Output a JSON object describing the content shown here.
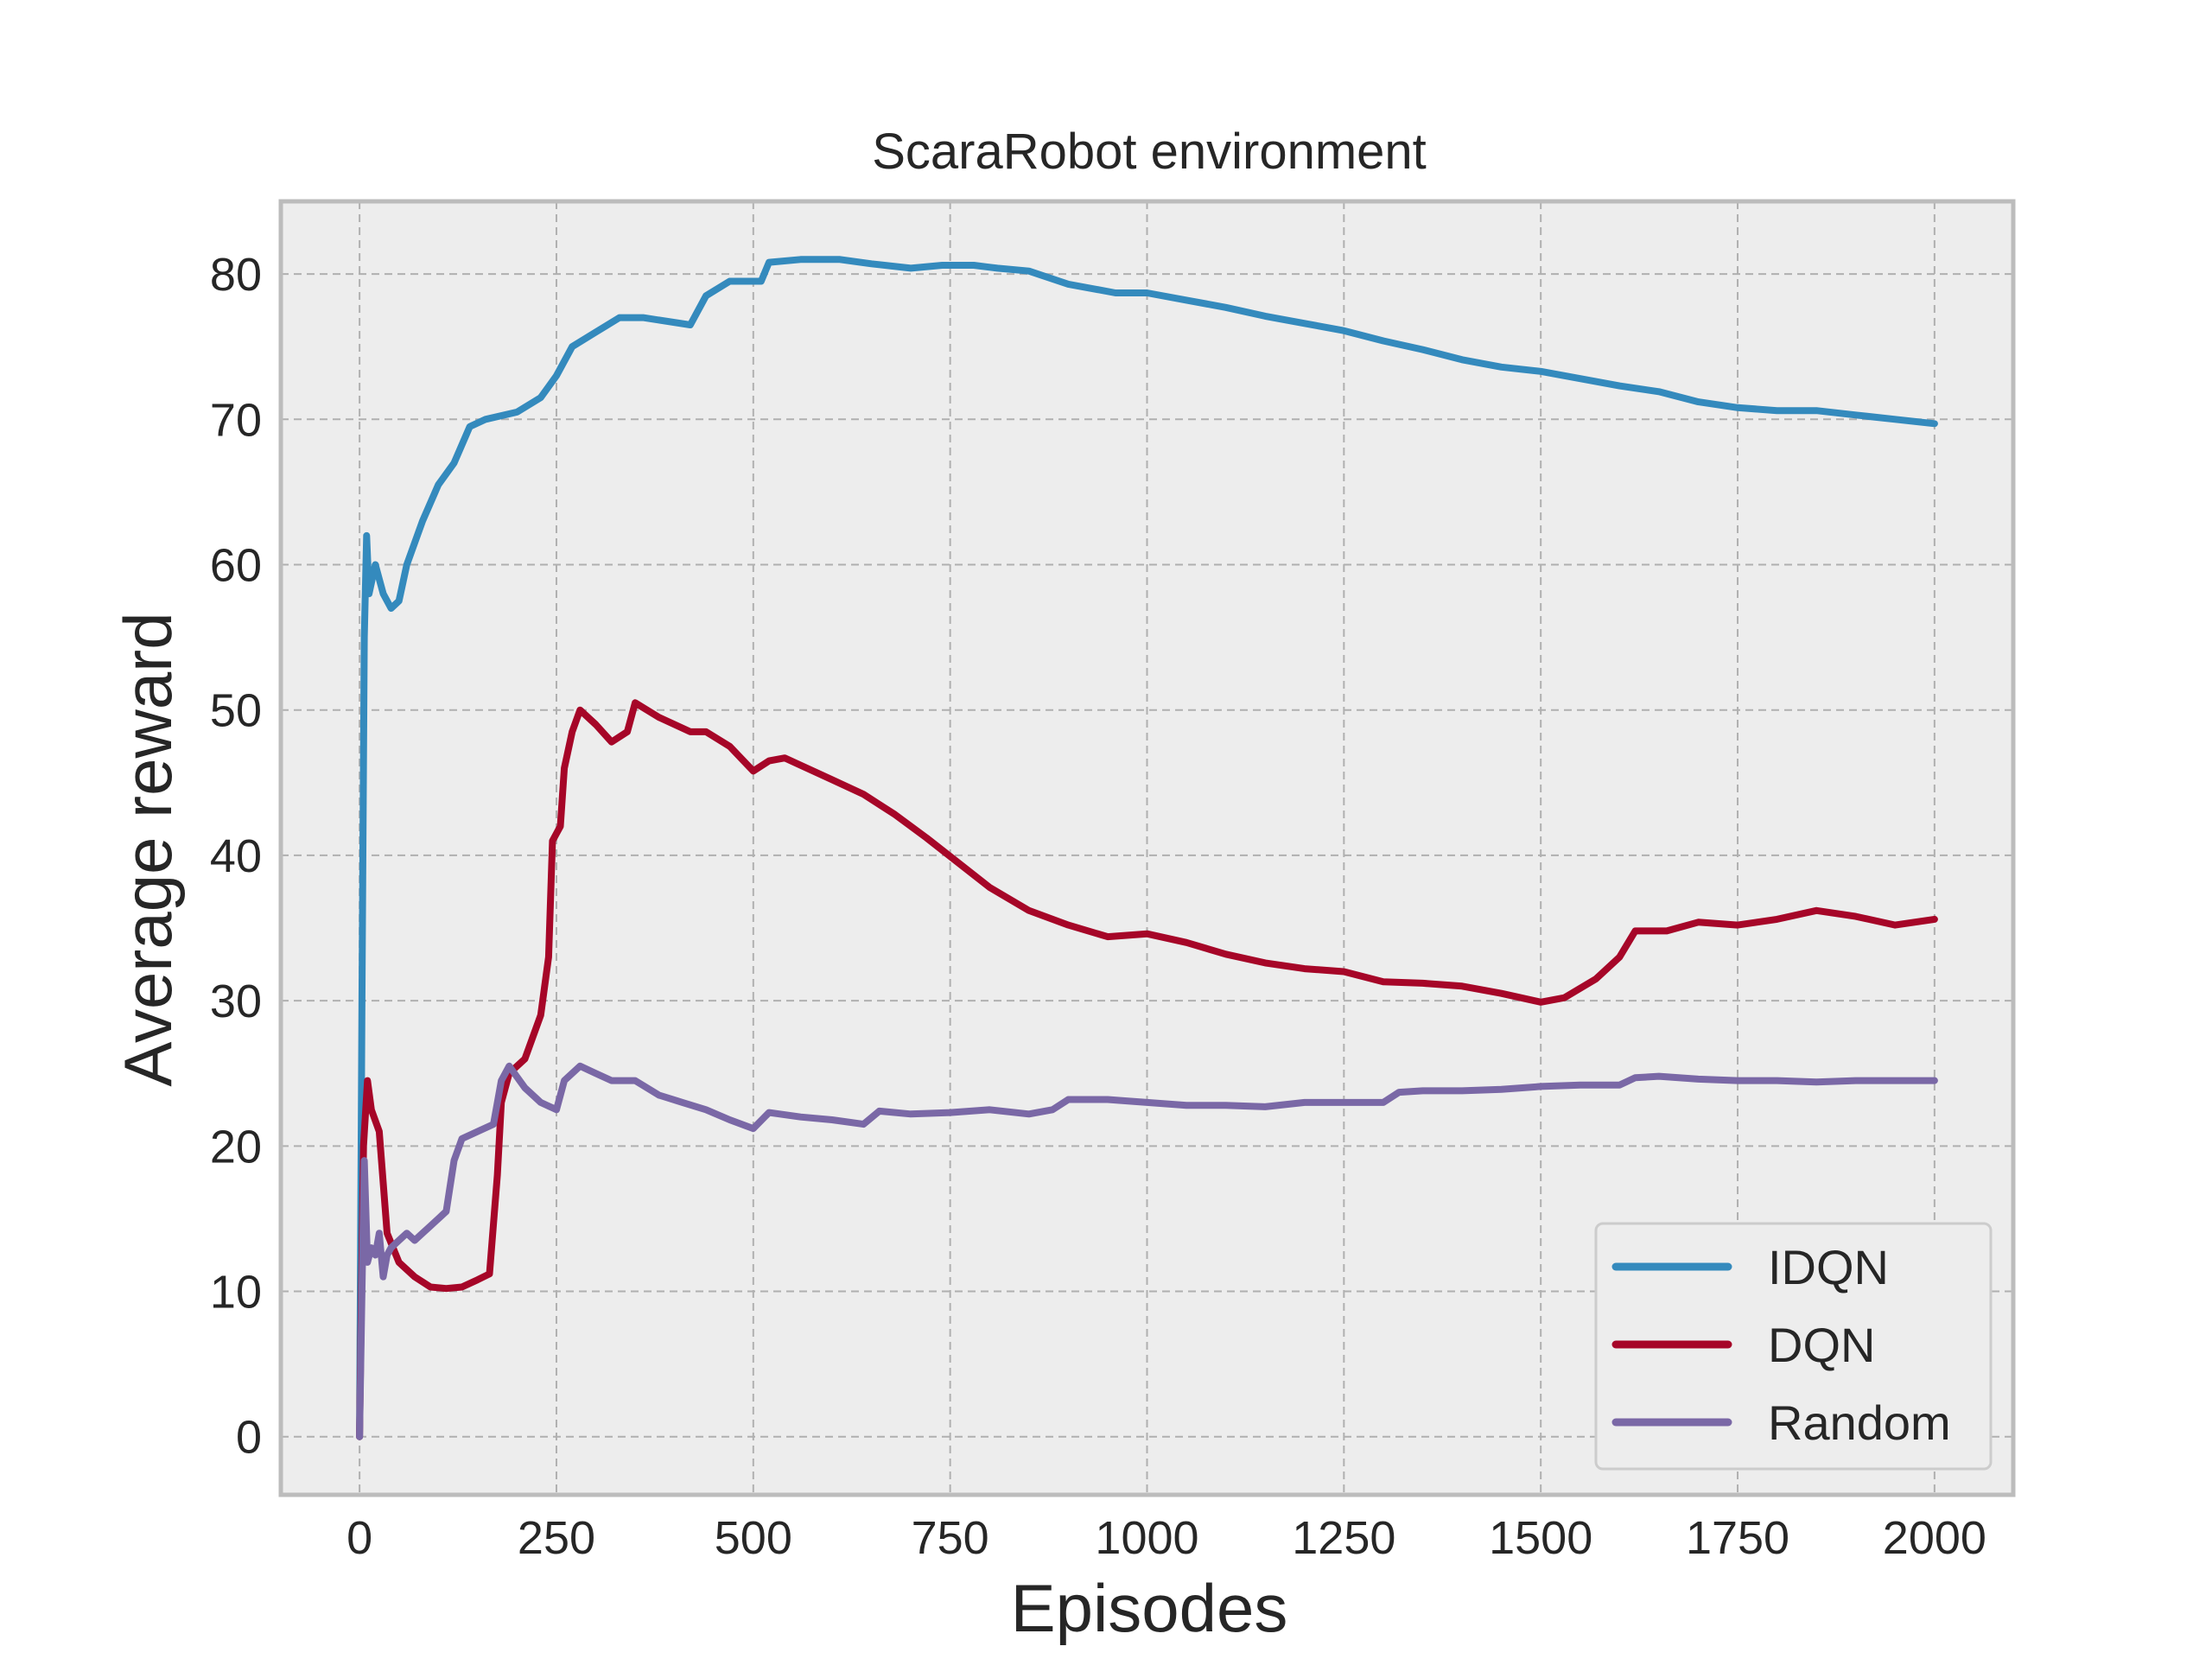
{
  "chart_data": {
    "type": "line",
    "title": "ScaraRobot environment",
    "xlabel": "Episodes",
    "ylabel": "Average reward",
    "xlim": [
      -100,
      2100
    ],
    "ylim": [
      -4,
      85
    ],
    "xticks": [
      0,
      250,
      500,
      750,
      1000,
      1250,
      1500,
      1750,
      2000
    ],
    "yticks": [
      0,
      10,
      20,
      30,
      40,
      50,
      60,
      70,
      80
    ],
    "grid": true,
    "legend_position": "lower-right",
    "background": "#ededed",
    "series": [
      {
        "name": "IDQN",
        "color": "#348abd",
        "points": [
          [
            0,
            0
          ],
          [
            3,
            30
          ],
          [
            6,
            55
          ],
          [
            9,
            62
          ],
          [
            12,
            58
          ],
          [
            20,
            60
          ],
          [
            30,
            58
          ],
          [
            40,
            57
          ],
          [
            50,
            57.5
          ],
          [
            60,
            60
          ],
          [
            80,
            63
          ],
          [
            100,
            65.5
          ],
          [
            120,
            67
          ],
          [
            140,
            69.5
          ],
          [
            160,
            70
          ],
          [
            200,
            70.5
          ],
          [
            230,
            71.5
          ],
          [
            250,
            73
          ],
          [
            270,
            75
          ],
          [
            300,
            76
          ],
          [
            330,
            77
          ],
          [
            360,
            77
          ],
          [
            420,
            76.5
          ],
          [
            440,
            78.5
          ],
          [
            470,
            79.5
          ],
          [
            510,
            79.5
          ],
          [
            520,
            80.8
          ],
          [
            560,
            81
          ],
          [
            610,
            81
          ],
          [
            650,
            80.7
          ],
          [
            700,
            80.4
          ],
          [
            740,
            80.6
          ],
          [
            780,
            80.6
          ],
          [
            810,
            80.4
          ],
          [
            850,
            80.2
          ],
          [
            900,
            79.3
          ],
          [
            960,
            78.7
          ],
          [
            1000,
            78.7
          ],
          [
            1050,
            78.2
          ],
          [
            1100,
            77.7
          ],
          [
            1150,
            77.1
          ],
          [
            1200,
            76.6
          ],
          [
            1250,
            76.1
          ],
          [
            1300,
            75.4
          ],
          [
            1350,
            74.8
          ],
          [
            1400,
            74.1
          ],
          [
            1450,
            73.6
          ],
          [
            1500,
            73.3
          ],
          [
            1550,
            72.8
          ],
          [
            1600,
            72.3
          ],
          [
            1650,
            71.9
          ],
          [
            1700,
            71.2
          ],
          [
            1750,
            70.8
          ],
          [
            1800,
            70.6
          ],
          [
            1850,
            70.6
          ],
          [
            1900,
            70.3
          ],
          [
            1950,
            70.0
          ],
          [
            2000,
            69.7
          ]
        ]
      },
      {
        "name": "DQN",
        "color": "#a60628",
        "points": [
          [
            0,
            0
          ],
          [
            5,
            20
          ],
          [
            10,
            24.5
          ],
          [
            15,
            22.5
          ],
          [
            25,
            21
          ],
          [
            35,
            14
          ],
          [
            50,
            12
          ],
          [
            70,
            11
          ],
          [
            90,
            10.3
          ],
          [
            110,
            10.2
          ],
          [
            130,
            10.3
          ],
          [
            150,
            10.8
          ],
          [
            165,
            11.2
          ],
          [
            175,
            18
          ],
          [
            180,
            23
          ],
          [
            190,
            25
          ],
          [
            210,
            26
          ],
          [
            230,
            29
          ],
          [
            240,
            33
          ],
          [
            245,
            41
          ],
          [
            255,
            42
          ],
          [
            260,
            46
          ],
          [
            270,
            48.5
          ],
          [
            280,
            50
          ],
          [
            300,
            49
          ],
          [
            320,
            47.8
          ],
          [
            340,
            48.5
          ],
          [
            350,
            50.5
          ],
          [
            380,
            49.5
          ],
          [
            420,
            48.5
          ],
          [
            440,
            48.5
          ],
          [
            470,
            47.5
          ],
          [
            500,
            45.8
          ],
          [
            520,
            46.5
          ],
          [
            540,
            46.7
          ],
          [
            560,
            46.2
          ],
          [
            600,
            45.2
          ],
          [
            640,
            44.2
          ],
          [
            680,
            42.8
          ],
          [
            720,
            41.2
          ],
          [
            760,
            39.5
          ],
          [
            800,
            37.8
          ],
          [
            850,
            36.2
          ],
          [
            900,
            35.2
          ],
          [
            950,
            34.4
          ],
          [
            1000,
            34.6
          ],
          [
            1050,
            34.0
          ],
          [
            1100,
            33.2
          ],
          [
            1150,
            32.6
          ],
          [
            1200,
            32.2
          ],
          [
            1250,
            32.0
          ],
          [
            1300,
            31.3
          ],
          [
            1350,
            31.2
          ],
          [
            1400,
            31.0
          ],
          [
            1450,
            30.5
          ],
          [
            1500,
            29.9
          ],
          [
            1530,
            30.2
          ],
          [
            1570,
            31.5
          ],
          [
            1600,
            33.0
          ],
          [
            1620,
            34.8
          ],
          [
            1660,
            34.8
          ],
          [
            1700,
            35.4
          ],
          [
            1750,
            35.2
          ],
          [
            1800,
            35.6
          ],
          [
            1850,
            36.2
          ],
          [
            1900,
            35.8
          ],
          [
            1950,
            35.2
          ],
          [
            2000,
            35.6
          ]
        ]
      },
      {
        "name": "Random",
        "color": "#7a68a6",
        "points": [
          [
            0,
            0
          ],
          [
            3,
            10
          ],
          [
            6,
            19
          ],
          [
            10,
            12
          ],
          [
            15,
            13
          ],
          [
            20,
            12.5
          ],
          [
            25,
            14
          ],
          [
            30,
            11
          ],
          [
            35,
            12.5
          ],
          [
            40,
            13
          ],
          [
            50,
            13.5
          ],
          [
            60,
            14
          ],
          [
            70,
            13.5
          ],
          [
            80,
            14
          ],
          [
            90,
            14.5
          ],
          [
            100,
            15
          ],
          [
            110,
            15.5
          ],
          [
            120,
            19
          ],
          [
            130,
            20.5
          ],
          [
            150,
            21
          ],
          [
            170,
            21.5
          ],
          [
            180,
            24.5
          ],
          [
            190,
            25.5
          ],
          [
            210,
            24
          ],
          [
            230,
            23
          ],
          [
            250,
            22.5
          ],
          [
            260,
            24.5
          ],
          [
            270,
            25
          ],
          [
            280,
            25.5
          ],
          [
            300,
            25
          ],
          [
            320,
            24.5
          ],
          [
            350,
            24.5
          ],
          [
            380,
            23.5
          ],
          [
            410,
            23
          ],
          [
            440,
            22.5
          ],
          [
            470,
            21.8
          ],
          [
            500,
            21.2
          ],
          [
            520,
            22.3
          ],
          [
            560,
            22
          ],
          [
            600,
            21.8
          ],
          [
            640,
            21.5
          ],
          [
            660,
            22.4
          ],
          [
            700,
            22.2
          ],
          [
            750,
            22.3
          ],
          [
            800,
            22.5
          ],
          [
            850,
            22.2
          ],
          [
            880,
            22.5
          ],
          [
            900,
            23.2
          ],
          [
            950,
            23.2
          ],
          [
            1000,
            23.0
          ],
          [
            1050,
            22.8
          ],
          [
            1100,
            22.8
          ],
          [
            1150,
            22.7
          ],
          [
            1200,
            23.0
          ],
          [
            1250,
            23.0
          ],
          [
            1300,
            23.0
          ],
          [
            1320,
            23.7
          ],
          [
            1350,
            23.8
          ],
          [
            1400,
            23.8
          ],
          [
            1450,
            23.9
          ],
          [
            1500,
            24.1
          ],
          [
            1550,
            24.2
          ],
          [
            1600,
            24.2
          ],
          [
            1620,
            24.7
          ],
          [
            1650,
            24.8
          ],
          [
            1700,
            24.6
          ],
          [
            1750,
            24.5
          ],
          [
            1800,
            24.5
          ],
          [
            1850,
            24.4
          ],
          [
            1900,
            24.5
          ],
          [
            1950,
            24.5
          ],
          [
            2000,
            24.5
          ]
        ]
      }
    ]
  }
}
